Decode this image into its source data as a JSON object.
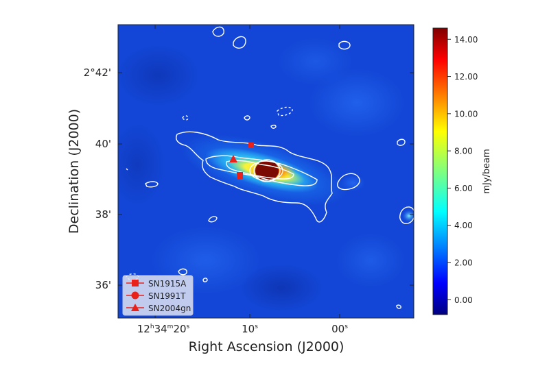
{
  "chart_data": {
    "type": "heatmap",
    "title": "",
    "xlabel": "Right Ascension (J2000)",
    "ylabel": "Declination (J2000)",
    "x_ticks": [
      {
        "pre": "12",
        "h": "h",
        "mid": "34",
        "m": "m",
        "sec": "20",
        "s": "s"
      },
      {
        "pre": "",
        "h": "",
        "mid": "",
        "m": "",
        "sec": "10",
        "s": "s"
      },
      {
        "pre": "",
        "h": "",
        "mid": "",
        "m": "",
        "sec": "00",
        "s": "s"
      }
    ],
    "y_ticks": [
      "2°42'",
      "40'",
      "38'",
      "36'"
    ],
    "colorbar": {
      "label": "mJy/beam",
      "min": -0.8,
      "max": 14.6,
      "ticks": [
        0.0,
        2.0,
        4.0,
        6.0,
        8.0,
        10.0,
        12.0,
        14.0
      ],
      "tick_labels": [
        "0.00",
        "2.00",
        "4.00",
        "6.00",
        "8.00",
        "10.00",
        "12.00",
        "14.00"
      ],
      "colormap": "jet"
    },
    "markers": [
      {
        "name": "SN1915A",
        "shape": "square",
        "color": "#e8221b"
      },
      {
        "name": "SN1991T",
        "shape": "circle",
        "color": "#e8221b"
      },
      {
        "name": "SN2004gn",
        "shape": "triangle",
        "color": "#e8221b"
      }
    ],
    "legend": {
      "position": "lower-left",
      "entries": [
        "SN1915A",
        "SN1991T",
        "SN2004gn"
      ]
    },
    "contours": {
      "color": "#ffffff",
      "negative_style": "dashed"
    }
  }
}
